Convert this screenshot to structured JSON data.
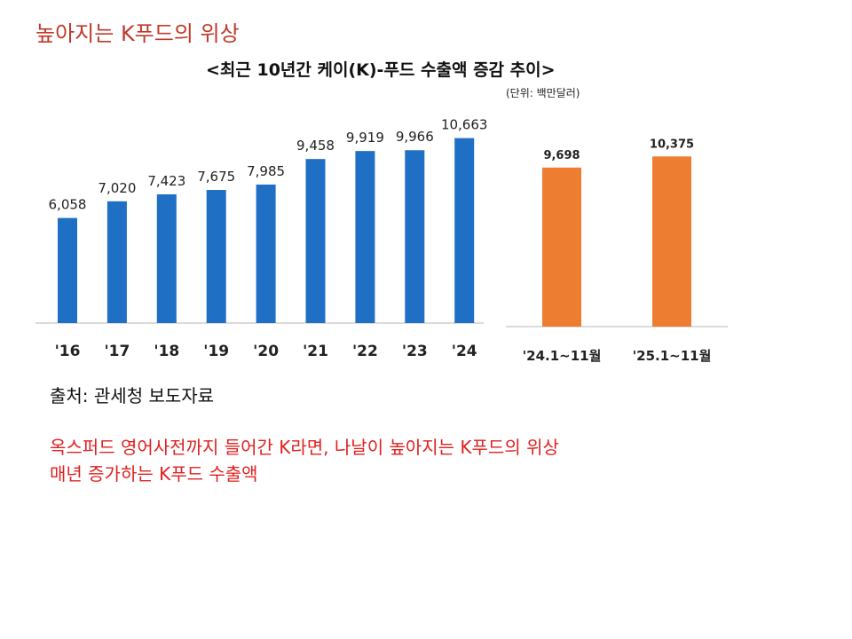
{
  "slide_title": "높아지는 K푸드의 위상",
  "source": "출처: 관세청 보도자료",
  "headline_lines": [
    "옥스퍼드 영어사전까지 들어간 K라면, 나날이 높아지는 K푸드의 위상",
    "매년 증가하는 K푸드 수출액"
  ],
  "colors": {
    "title_red": "#c0392b",
    "headline_red": "#e02020",
    "blue_bar": "#1f6fc5",
    "orange_bar": "#ed7d31"
  },
  "chart_data": [
    {
      "type": "bar",
      "title": "<최근 10년간 케이(K)-푸드 수출액 증감 추이>",
      "unit": "(단위: 백만달러)",
      "categories": [
        "'16",
        "'17",
        "'18",
        "'19",
        "'20",
        "'21",
        "'22",
        "'23",
        "'24"
      ],
      "values": [
        6058,
        7020,
        7423,
        7675,
        7985,
        9458,
        9919,
        9966,
        10663
      ],
      "value_labels": [
        "6,058",
        "7,020",
        "7,423",
        "7,675",
        "7,985",
        "9,458",
        "9,919",
        "9,966",
        "10,663"
      ],
      "color": "#1f6fc5",
      "ylim": [
        0,
        12000
      ],
      "grid": false
    },
    {
      "type": "bar",
      "categories": [
        "'24.1~11월",
        "'25.1~11월"
      ],
      "values": [
        9698,
        10375
      ],
      "value_labels": [
        "9,698",
        "10,375"
      ],
      "color": "#ed7d31",
      "ylim": [
        0,
        11500
      ],
      "grid": false
    }
  ]
}
